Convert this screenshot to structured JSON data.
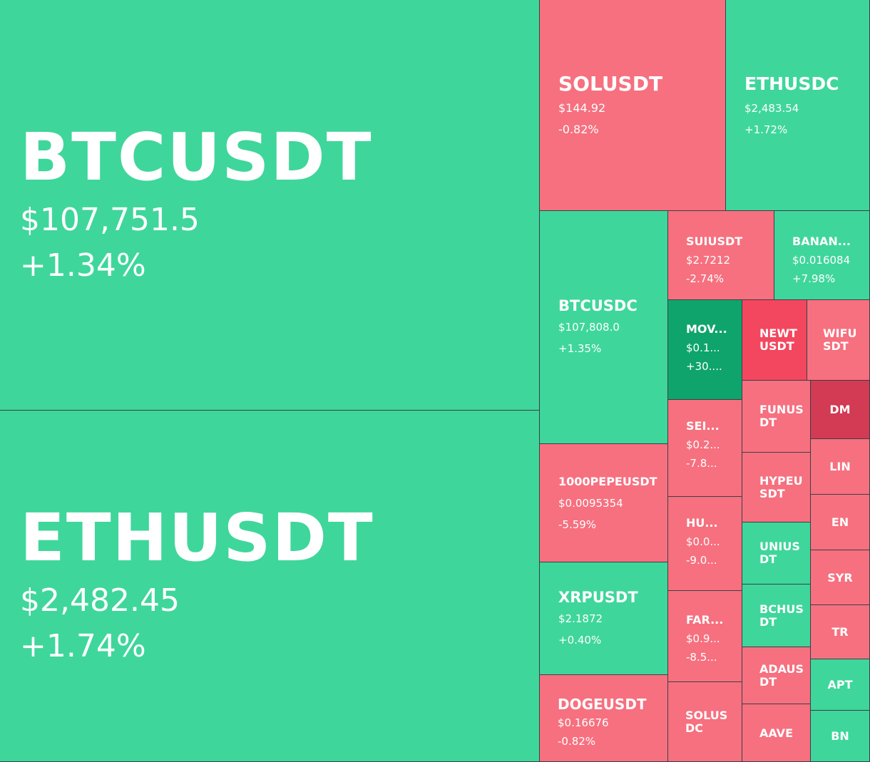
{
  "heatmap": {
    "tiles": [
      {
        "symbol": "BTCUSDT",
        "price": "$107,751.5",
        "change": "+1.34%"
      },
      {
        "symbol": "ETHUSDT",
        "price": "$2,482.45",
        "change": "+1.74%"
      },
      {
        "symbol": "SOLUSDT",
        "price": "$144.92",
        "change": "-0.82%"
      },
      {
        "symbol": "ETHUSDC",
        "price": "$2,483.54",
        "change": "+1.72%"
      },
      {
        "symbol": "BTCUSDC",
        "price": "$107,808.0",
        "change": "+1.35%"
      },
      {
        "symbol": "SUIUSDT",
        "price": "$2.7212",
        "change": "-2.74%"
      },
      {
        "symbol": "BANAN...",
        "price": "$0.016084",
        "change": "+7.98%"
      },
      {
        "symbol": "MOV...",
        "price": "$0.1...",
        "change": "+30...."
      },
      {
        "symbol": "NEWTUSDT"
      },
      {
        "symbol": "WIFUSDT"
      },
      {
        "symbol": "1000PEPEUSDT",
        "price": "$0.0095354",
        "change": "-5.59%"
      },
      {
        "symbol": "SEI...",
        "price": "$0.2...",
        "change": "-7.8..."
      },
      {
        "symbol": "FUNUSDT"
      },
      {
        "symbol": "DM"
      },
      {
        "symbol": "LIN"
      },
      {
        "symbol": "HYPEUSDT"
      },
      {
        "symbol": "HU...",
        "price": "$0.0...",
        "change": "-9.0..."
      },
      {
        "symbol": "EN"
      },
      {
        "symbol": "UNIUSDT"
      },
      {
        "symbol": "XRPUSDT",
        "price": "$2.1872",
        "change": "+0.40%"
      },
      {
        "symbol": "SYR"
      },
      {
        "symbol": "FAR...",
        "price": "$0.9...",
        "change": "-8.5..."
      },
      {
        "symbol": "BCHUSDT"
      },
      {
        "symbol": "TR"
      },
      {
        "symbol": "ADAUSDT"
      },
      {
        "symbol": "APT"
      },
      {
        "symbol": "DOGEUSDT",
        "price": "$0.16676",
        "change": "-0.82%"
      },
      {
        "symbol": "SOLUSDC"
      },
      {
        "symbol": "AAVE"
      },
      {
        "symbol": "BN"
      }
    ]
  },
  "colors": {
    "up": "#3fd69b",
    "up_strong": "#0fa46b",
    "down": "#f6707f",
    "down_strong": "#f3475f",
    "down_deep": "#d33a53",
    "border": "#3a4048"
  }
}
